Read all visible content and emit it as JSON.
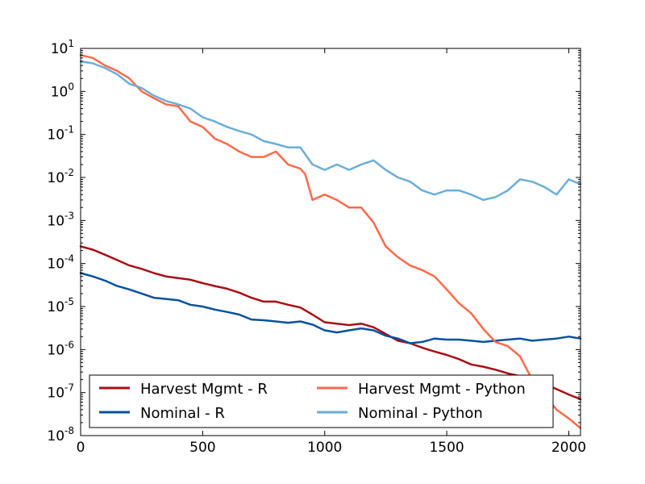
{
  "chart_data": {
    "type": "line",
    "yscale": "log",
    "xlim": [
      0,
      2048
    ],
    "ylim": [
      1e-08,
      10
    ],
    "grid": false,
    "legend": {
      "placement": "lower-left",
      "ncol": 2
    },
    "x_ticks": [
      "0",
      "500",
      "1000",
      "1500",
      "2000"
    ],
    "x_tick_values": [
      0,
      500,
      1000,
      1500,
      2000
    ],
    "y_ticks": [
      {
        "base": "10",
        "exp": "1",
        "value": 10
      },
      {
        "base": "10",
        "exp": "0",
        "value": 1
      },
      {
        "base": "10",
        "exp": "-1",
        "value": 0.1
      },
      {
        "base": "10",
        "exp": "-2",
        "value": 0.01
      },
      {
        "base": "10",
        "exp": "-3",
        "value": 0.001
      },
      {
        "base": "10",
        "exp": "-4",
        "value": 0.0001
      },
      {
        "base": "10",
        "exp": "-5",
        "value": 1e-05
      },
      {
        "base": "10",
        "exp": "-6",
        "value": 1e-06
      },
      {
        "base": "10",
        "exp": "-7",
        "value": 1e-07
      },
      {
        "base": "10",
        "exp": "-8",
        "value": 1e-08
      }
    ],
    "series": [
      {
        "name": "Harvest Mgmt - R",
        "color": "#a50f15",
        "x": [
          0,
          50,
          100,
          150,
          200,
          250,
          300,
          350,
          400,
          450,
          500,
          550,
          600,
          650,
          700,
          750,
          800,
          850,
          900,
          950,
          1000,
          1050,
          1100,
          1150,
          1200,
          1250,
          1300,
          1350,
          1400,
          1450,
          1500,
          1550,
          1600,
          1650,
          1700,
          1750,
          1800,
          1850,
          1900,
          1950,
          2000,
          2048
        ],
        "y": [
          0.00025,
          0.00021,
          0.00016,
          0.00012,
          9e-05,
          7.5e-05,
          6e-05,
          5e-05,
          4.6e-05,
          4.2e-05,
          3.5e-05,
          3e-05,
          2.6e-05,
          2.1e-05,
          1.6e-05,
          1.3e-05,
          1.3e-05,
          1.1e-05,
          9.5e-06,
          6.5e-06,
          4.3e-06,
          4e-06,
          3.7e-06,
          4e-06,
          3.3e-06,
          2.3e-06,
          1.6e-06,
          1.4e-06,
          1.1e-06,
          9e-07,
          7.5e-07,
          6e-07,
          4.5e-07,
          4e-07,
          3.4e-07,
          2.8e-07,
          2.4e-07,
          2e-07,
          1.6e-07,
          1.2e-07,
          9e-08,
          7e-08
        ]
      },
      {
        "name": "Nominal - R",
        "color": "#08519c",
        "x": [
          0,
          50,
          100,
          150,
          200,
          250,
          300,
          350,
          400,
          450,
          500,
          550,
          600,
          650,
          700,
          750,
          800,
          850,
          900,
          950,
          1000,
          1050,
          1100,
          1150,
          1200,
          1250,
          1300,
          1350,
          1400,
          1450,
          1500,
          1550,
          1600,
          1650,
          1700,
          1750,
          1800,
          1850,
          1900,
          1950,
          2000,
          2048
        ],
        "y": [
          6e-05,
          5e-05,
          4e-05,
          3e-05,
          2.5e-05,
          2e-05,
          1.6e-05,
          1.5e-05,
          1.4e-05,
          1.1e-05,
          1e-05,
          8.5e-06,
          7.5e-06,
          6.5e-06,
          5e-06,
          4.8e-06,
          4.5e-06,
          4.2e-06,
          4.5e-06,
          3.8e-06,
          2.8e-06,
          2.5e-06,
          2.8e-06,
          3.1e-06,
          2.8e-06,
          2.1e-06,
          1.8e-06,
          1.4e-06,
          1.5e-06,
          1.8e-06,
          1.7e-06,
          1.7e-06,
          1.6e-06,
          1.5e-06,
          1.6e-06,
          1.7e-06,
          1.8e-06,
          1.6e-06,
          1.7e-06,
          1.8e-06,
          2e-06,
          1.8e-06
        ]
      },
      {
        "name": "Harvest Mgmt - Python",
        "color": "#fb6a4a",
        "x": [
          0,
          50,
          100,
          150,
          200,
          250,
          300,
          350,
          400,
          450,
          500,
          550,
          600,
          650,
          700,
          750,
          800,
          850,
          900,
          920,
          950,
          1000,
          1050,
          1100,
          1150,
          1200,
          1250,
          1300,
          1350,
          1400,
          1450,
          1500,
          1550,
          1600,
          1650,
          1700,
          1750,
          1800,
          1850,
          1900,
          1950,
          2000,
          2048
        ],
        "y": [
          7,
          6,
          4,
          3,
          2,
          1,
          0.7,
          0.5,
          0.45,
          0.2,
          0.15,
          0.08,
          0.06,
          0.04,
          0.03,
          0.03,
          0.04,
          0.02,
          0.016,
          0.012,
          0.003,
          0.004,
          0.003,
          0.002,
          0.002,
          0.0009,
          0.00025,
          0.00014,
          9e-05,
          7e-05,
          5e-05,
          2.5e-05,
          1.2e-05,
          7e-06,
          3e-06,
          1.5e-06,
          1.2e-06,
          7e-07,
          2e-07,
          9e-08,
          4e-08,
          2.5e-08,
          1.5e-08
        ]
      },
      {
        "name": "Nominal - Python",
        "color": "#6baed6",
        "x": [
          0,
          50,
          100,
          150,
          200,
          250,
          300,
          350,
          400,
          450,
          500,
          550,
          600,
          650,
          700,
          750,
          800,
          850,
          900,
          950,
          1000,
          1050,
          1100,
          1150,
          1200,
          1250,
          1300,
          1350,
          1400,
          1450,
          1500,
          1550,
          1600,
          1650,
          1700,
          1750,
          1800,
          1850,
          1900,
          1950,
          2000,
          2048
        ],
        "y": [
          5,
          4.5,
          3.5,
          2.5,
          1.5,
          1.2,
          0.8,
          0.6,
          0.5,
          0.4,
          0.25,
          0.2,
          0.15,
          0.12,
          0.1,
          0.07,
          0.06,
          0.05,
          0.05,
          0.02,
          0.015,
          0.02,
          0.015,
          0.02,
          0.025,
          0.015,
          0.01,
          0.008,
          0.005,
          0.004,
          0.005,
          0.005,
          0.004,
          0.003,
          0.0035,
          0.005,
          0.009,
          0.008,
          0.006,
          0.004,
          0.009,
          0.007
        ]
      }
    ]
  }
}
